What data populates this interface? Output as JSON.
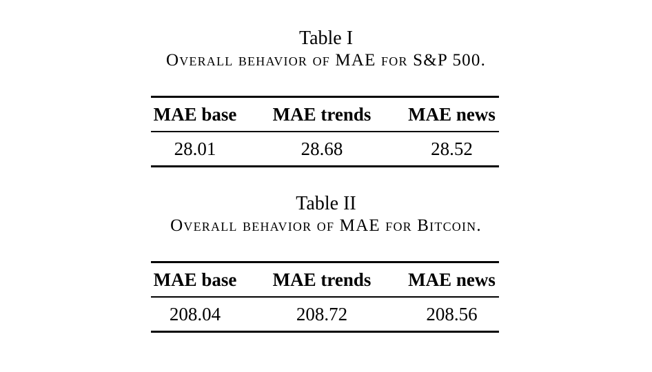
{
  "tables": [
    {
      "number": "Table I",
      "caption": "Overall behavior of MAE for S&P 500.",
      "headers": [
        "MAE base",
        "MAE trends",
        "MAE news"
      ],
      "rows": [
        [
          "28.01",
          "28.68",
          "28.52"
        ]
      ]
    },
    {
      "number": "Table II",
      "caption": "Overall behavior of MAE for Bitcoin.",
      "headers": [
        "MAE base",
        "MAE trends",
        "MAE news"
      ],
      "rows": [
        [
          "208.04",
          "208.72",
          "208.56"
        ]
      ]
    }
  ]
}
